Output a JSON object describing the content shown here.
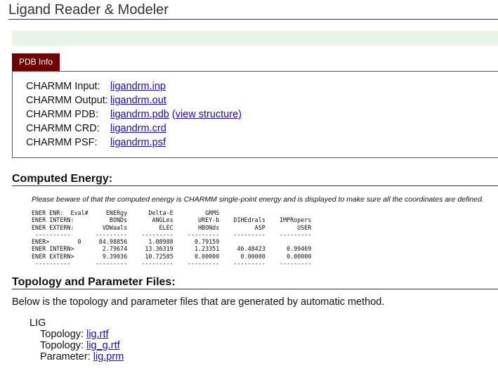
{
  "header": {
    "title": "Ligand Reader & Modeler"
  },
  "colors": {
    "tab": "#700000",
    "notice_bar": "#e9f5e9",
    "link": "#1a0dab"
  },
  "tab": {
    "label": "PDB Info"
  },
  "pdb_info": [
    {
      "label": "CHARMM Input:",
      "link": "ligandrm.inp"
    },
    {
      "label": "CHARMM Output:",
      "link": "ligandrm.out"
    },
    {
      "label": "CHARMM PDB:",
      "link": "ligandrm.pdb",
      "extra_link": "(view structure)"
    },
    {
      "label": "CHARMM CRD:",
      "link": "ligandrm.crd"
    },
    {
      "label": "CHARMM PSF:",
      "link": "ligandrm.psf"
    }
  ],
  "energy": {
    "heading": "Computed Energy:",
    "note": "Please beware of that the computed energy is CHARMM single-point energy and is displayed to make sure all the coordinates are defined.",
    "lines": [
      "ENER ENR:  Eval#     ENERgy      Delta-E         GRMS",
      "ENER INTERN:          BONDs       ANGLes       UREY-b    DIHEdrals    IMPRopers",
      "ENER EXTERN:        VDWaals         ELEC       HBONds          ASP         USER",
      " ----------       ---------    ---------    ---------    ---------    ---------",
      "ENER>        0     84.98856      1.08988      0.79159",
      "ENER INTERN>        2.79674     13.36319      1.23351     46.48423      0.99469",
      "ENER EXTERN>        9.39036     10.72585      0.00000      0.00000      0.00000",
      " ----------       ---------    ---------    ---------    ---------    ---------"
    ]
  },
  "topology": {
    "heading": "Topology and Parameter Files:",
    "description": "Below is the topology and parameter files that are generated by automatic method.",
    "group": "LIG",
    "files": [
      {
        "label": "Topology:",
        "link": "lig.rtf"
      },
      {
        "label": "Topology:",
        "link": "lig_g.rtf"
      },
      {
        "label": "Parameter:",
        "link": "lig.prm"
      }
    ]
  }
}
